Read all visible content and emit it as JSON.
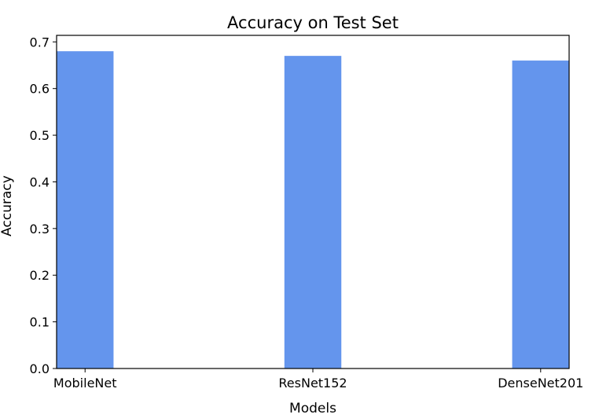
{
  "chart_data": {
    "type": "bar",
    "title": "Accuracy on Test Set",
    "xlabel": "Models",
    "ylabel": "Accuracy",
    "categories": [
      "MobileNet",
      "ResNet152",
      "DenseNet201"
    ],
    "values": [
      0.68,
      0.67,
      0.66
    ],
    "ylim": [
      0,
      0.714
    ],
    "yticks": [
      0.0,
      0.1,
      0.2,
      0.3,
      0.4,
      0.5,
      0.6,
      0.7
    ],
    "ytick_labels": [
      "0.0",
      "0.1",
      "0.2",
      "0.3",
      "0.4",
      "0.5",
      "0.6",
      "0.7"
    ],
    "bar_color": "#6495ED",
    "grid": false,
    "legend": false
  }
}
